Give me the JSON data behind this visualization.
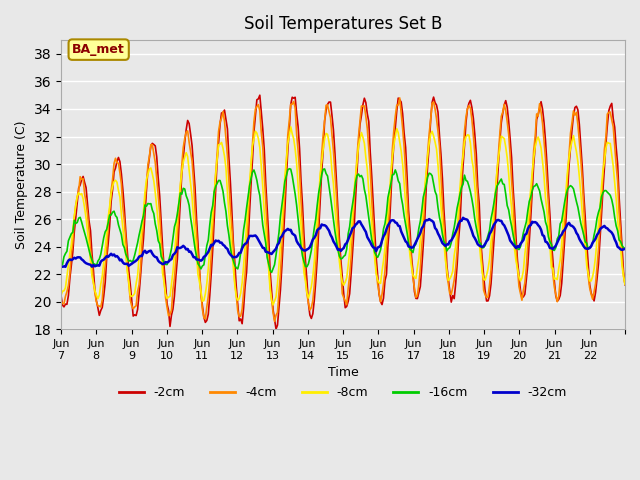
{
  "title": "Soil Temperatures Set B",
  "xlabel": "Time",
  "ylabel": "Soil Temperature (C)",
  "ylim": [
    18,
    39
  ],
  "yticks": [
    18,
    20,
    22,
    24,
    26,
    28,
    30,
    32,
    34,
    36,
    38
  ],
  "background_color": "#e8e8e8",
  "plot_bg_color": "#e8e8e8",
  "annotation_text": "BA_met",
  "annotation_bg": "#ffff99",
  "annotation_border": "#aa8800",
  "colors": {
    "-2cm": "#cc0000",
    "-4cm": "#ff8800",
    "-8cm": "#ffee00",
    "-16cm": "#00cc00",
    "-32cm": "#0000cc"
  },
  "x_tick_labels": [
    "Jun 7",
    "Jun 8",
    "Jun 9",
    "Jun 10",
    "Jun 11",
    "Jun 12",
    "Jun 13",
    "Jun 14",
    "Jun 15",
    "Jun 16",
    "Jun 17",
    "Jun 18",
    "Jun 19",
    "Jun 20",
    "Jun 21",
    "Jun 22"
  ],
  "n_days": 16,
  "samples_per_day": 24
}
